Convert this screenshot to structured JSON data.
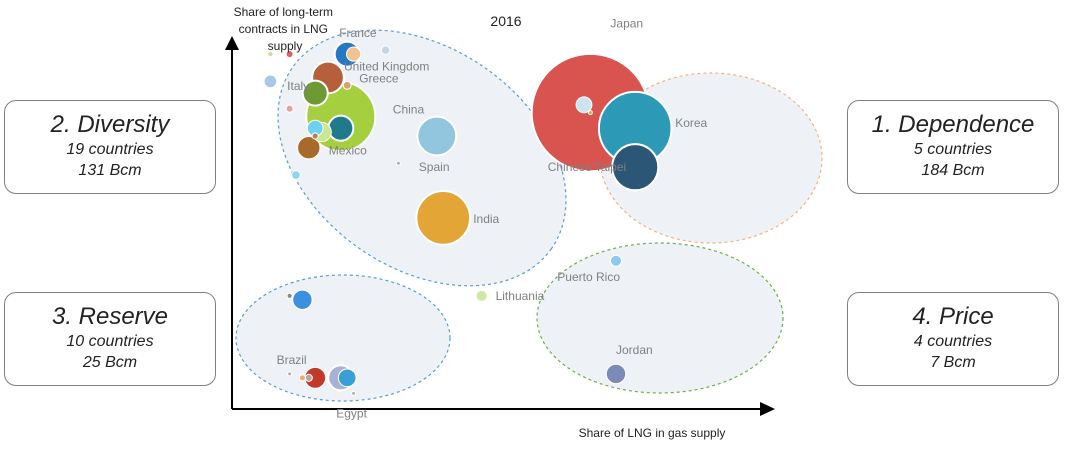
{
  "chart_data": {
    "type": "scatter",
    "title": "2016",
    "xlabel": "Share of LNG in gas supply",
    "ylabel_lines": [
      "Share of long-term",
      "contracts in LNG",
      "supply"
    ],
    "groups": [
      {
        "rank": "2.",
        "name": "Diversity",
        "countries": "19 countries",
        "volume": "131 Bcm",
        "border": "#5b9bd5"
      },
      {
        "rank": "1.",
        "name": "Dependence",
        "countries": "5 countries",
        "volume": "184 Bcm",
        "border": "#f4b183"
      },
      {
        "rank": "3.",
        "name": "Reserve",
        "countries": "10 countries",
        "volume": "25 Bcm",
        "border": "#5b9bd5"
      },
      {
        "rank": "4.",
        "name": "Price",
        "countries": "4 countries",
        "volume": "7 Bcm",
        "border": "#70ad47"
      }
    ],
    "points": [
      {
        "label": "Japan",
        "x": 0.56,
        "y": 0.76,
        "size": 110,
        "color": "#d9534f"
      },
      {
        "label": "",
        "x": 0.55,
        "y": 0.78,
        "size": 2,
        "color": "#cde3ef"
      },
      {
        "label": "",
        "x": 0.56,
        "y": 0.76,
        "size": 0.1,
        "color": "#e8a33b"
      },
      {
        "label": "Korea",
        "x": 0.63,
        "y": 0.72,
        "size": 42,
        "color": "#2c9ab7"
      },
      {
        "label": "Chinese Taipei",
        "x": 0.63,
        "y": 0.62,
        "size": 17,
        "color": "#2c5676"
      },
      {
        "label": "China",
        "x": 0.17,
        "y": 0.75,
        "size": 38,
        "color": "#a5cf3e"
      },
      {
        "label": "",
        "x": 0.17,
        "y": 0.72,
        "size": 5,
        "color": "#1f7a8c"
      },
      {
        "label": "France",
        "x": 0.18,
        "y": 0.91,
        "size": 5,
        "color": "#2479c2"
      },
      {
        "label": "",
        "x": 0.19,
        "y": 0.91,
        "size": 1.6,
        "color": "#f2c38c"
      },
      {
        "label": "United Kingdom",
        "x": 0.15,
        "y": 0.85,
        "size": 8,
        "color": "#b5603b"
      },
      {
        "label": "Italy",
        "x": 0.13,
        "y": 0.81,
        "size": 5,
        "color": "#6e9a35"
      },
      {
        "label": "Greece",
        "x": 0.18,
        "y": 0.83,
        "size": 0.5,
        "color": "#d9a273"
      },
      {
        "label": "Mexico",
        "x": 0.12,
        "y": 0.67,
        "size": 4,
        "color": "#a86a2a"
      },
      {
        "label": "",
        "x": 0.13,
        "y": 0.72,
        "size": 2,
        "color": "#6fd1f0"
      },
      {
        "label": "",
        "x": 0.14,
        "y": 0.71,
        "size": 3,
        "color": "#c8e88c"
      },
      {
        "label": "",
        "x": 0.1,
        "y": 0.6,
        "size": 0.6,
        "color": "#8fd6f4"
      },
      {
        "label": "",
        "x": 0.06,
        "y": 0.84,
        "size": 1.3,
        "color": "#aac6e8"
      },
      {
        "label": "",
        "x": 0.09,
        "y": 0.77,
        "size": 0.4,
        "color": "#e8a0a0"
      },
      {
        "label": "",
        "x": 0.09,
        "y": 0.91,
        "size": 0.4,
        "color": "#e06060"
      },
      {
        "label": "",
        "x": 0.06,
        "y": 0.91,
        "size": 0.2,
        "color": "#e0d0a0"
      },
      {
        "label": "",
        "x": 0.24,
        "y": 0.92,
        "size": 0.6,
        "color": "#c8d4e0"
      },
      {
        "label": "",
        "x": 0.13,
        "y": 0.7,
        "size": 0.3,
        "color": "#b08060"
      },
      {
        "label": "",
        "x": 0.26,
        "y": 0.63,
        "size": 0.1,
        "color": "#b0b0b0"
      },
      {
        "label": "Spain",
        "x": 0.32,
        "y": 0.7,
        "size": 12,
        "color": "#92c5de"
      },
      {
        "label": "India",
        "x": 0.33,
        "y": 0.49,
        "size": 23,
        "color": "#e3a535"
      },
      {
        "label": "Lithuania",
        "x": 0.39,
        "y": 0.29,
        "size": 1,
        "color": "#cfe8a9"
      },
      {
        "label": "Puerto Rico",
        "x": 0.6,
        "y": 0.38,
        "size": 1,
        "color": "#8fc9f0"
      },
      {
        "label": "Jordan",
        "x": 0.6,
        "y": 0.09,
        "size": 3,
        "color": "#7b8bb5"
      },
      {
        "label": "",
        "x": 0.11,
        "y": 0.28,
        "size": 3,
        "color": "#3d8fe0"
      },
      {
        "label": "",
        "x": 0.09,
        "y": 0.29,
        "size": 0.2,
        "color": "#888888"
      },
      {
        "label": "Brazil",
        "x": 0.09,
        "y": 0.09,
        "size": 0.1,
        "color": "#b0b0b0"
      },
      {
        "label": "",
        "x": 0.11,
        "y": 0.08,
        "size": 0.3,
        "color": "#e8b070"
      },
      {
        "label": "",
        "x": 0.12,
        "y": 0.08,
        "size": 0.4,
        "color": "#c0a0a0"
      },
      {
        "label": "",
        "x": 0.13,
        "y": 0.08,
        "size": 3.5,
        "color": "#c0392b"
      },
      {
        "label": "",
        "x": 0.17,
        "y": 0.08,
        "size": 5,
        "color": "#a7b2d6"
      },
      {
        "label": "",
        "x": 0.18,
        "y": 0.08,
        "size": 2.5,
        "color": "#3a9fd6"
      },
      {
        "label": "Egypt",
        "x": 0.19,
        "y": 0.04,
        "size": 0.1,
        "color": "#b0b0b0"
      }
    ]
  }
}
